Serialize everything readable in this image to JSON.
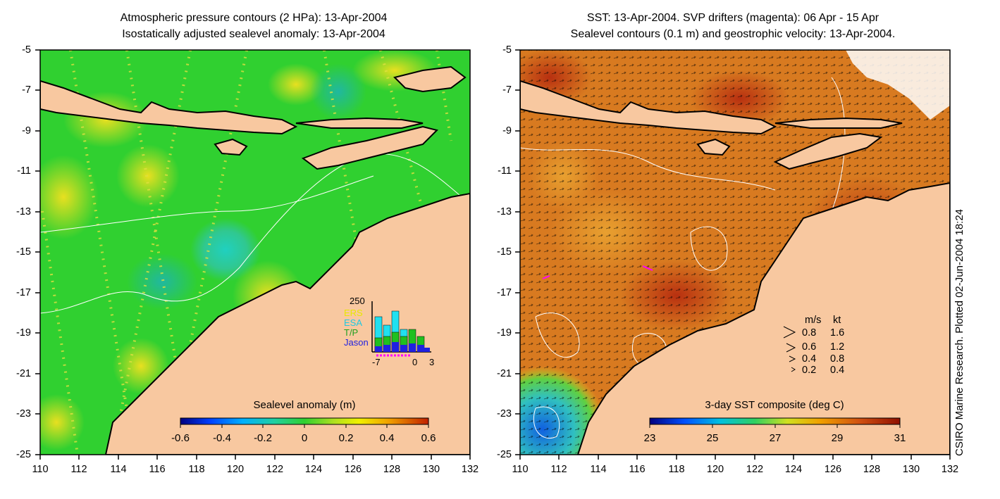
{
  "left_panel": {
    "title_line1": "Atmospheric pressure contours (2 HPa): 13-Apr-2004",
    "title_line2": "Isostatically adjusted sealevel anomaly: 13-Apr-2004",
    "y_ticks": [
      "-5",
      "-7",
      "-9",
      "-11",
      "-13",
      "-15",
      "-17",
      "-19",
      "-21",
      "-23",
      "-25"
    ],
    "x_ticks": [
      "110",
      "112",
      "114",
      "116",
      "118",
      "120",
      "122",
      "124",
      "126",
      "128",
      "130",
      "132"
    ],
    "colorbar": {
      "title": "Sealevel anomaly (m)",
      "labels": [
        "-0.6",
        "-0.4",
        "-0.2",
        "0",
        "0.2",
        "0.4",
        "0.6"
      ],
      "range": [
        -0.6,
        0.6
      ]
    },
    "inset_histogram": {
      "y_max_label": "250",
      "legend": [
        "ERS",
        "ESA",
        "T/P",
        "Jason"
      ],
      "legend_colors": [
        "#e8e800",
        "#20c8e0",
        "#20c020",
        "#2020e0"
      ],
      "x_labels": [
        "-7",
        "0",
        "3"
      ]
    }
  },
  "right_panel": {
    "title_line1": "SST: 13-Apr-2004. SVP drifters (magenta): 06 Apr - 15 Apr",
    "title_line2": "Sealevel contours (0.1 m) and geostrophic velocity: 13-Apr-2004.",
    "y_ticks": [
      "-5",
      "-7",
      "-9",
      "-11",
      "-13",
      "-15",
      "-17",
      "-19",
      "-21",
      "-23",
      "-25"
    ],
    "x_ticks": [
      "110",
      "112",
      "114",
      "116",
      "118",
      "120",
      "122",
      "124",
      "126",
      "128",
      "130",
      "132"
    ],
    "colorbar": {
      "title": "3-day SST composite (deg C)",
      "labels": [
        "23",
        "25",
        "27",
        "29",
        "31"
      ],
      "range": [
        23,
        31
      ]
    },
    "velocity_legend": {
      "header_ms": "m/s",
      "header_kt": "kt",
      "rows": [
        {
          "ms": "0.8",
          "kt": "1.6"
        },
        {
          "ms": "0.6",
          "kt": "1.2"
        },
        {
          "ms": "0.4",
          "kt": "0.8"
        },
        {
          "ms": "0.2",
          "kt": "0.4"
        }
      ]
    }
  },
  "footer_vertical": "CSIRO Marine Research. Plotted 02-Jun-2004 18:24",
  "colors": {
    "land": "#f8c8a0",
    "coast": "#000000",
    "sla_background": "#30d030",
    "sst_background": "#d87a20",
    "contour": "#ffffff",
    "drifter": "#ff00ff"
  }
}
